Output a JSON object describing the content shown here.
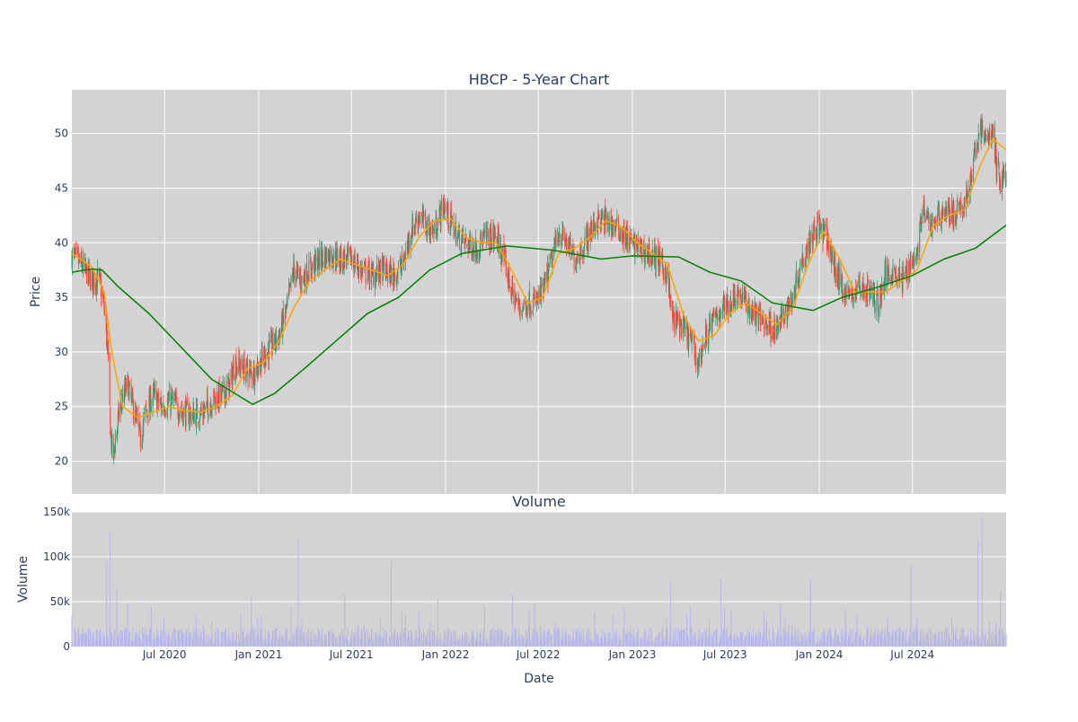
{
  "chart_data": [
    {
      "type": "candlestick",
      "title": "HBCP - 5-Year Chart",
      "ylabel": "Price",
      "xlim": [
        "2020-01-02",
        "2024-12-31"
      ],
      "ylim": [
        17,
        54
      ],
      "y_ticks": [
        20,
        25,
        30,
        35,
        40,
        45,
        50
      ],
      "x_ticks": [
        "2020-07-01",
        "2021-01-01",
        "2021-07-01",
        "2022-01-01",
        "2022-07-01",
        "2023-01-01",
        "2023-07-01",
        "2024-01-01",
        "2024-07-01"
      ],
      "grid": true,
      "up_color": "#3d9970",
      "down_color": "#ff4136",
      "price_path": [
        [
          "2020-01-02",
          38.8
        ],
        [
          "2020-01-20",
          38.0
        ],
        [
          "2020-02-10",
          36.5
        ],
        [
          "2020-02-24",
          36.8
        ],
        [
          "2020-03-05",
          34.0
        ],
        [
          "2020-03-12",
          30.0
        ],
        [
          "2020-03-18",
          22.0
        ],
        [
          "2020-03-23",
          20.5
        ],
        [
          "2020-04-05",
          25.0
        ],
        [
          "2020-04-20",
          27.0
        ],
        [
          "2020-05-05",
          24.0
        ],
        [
          "2020-05-15",
          22.0
        ],
        [
          "2020-05-25",
          24.5
        ],
        [
          "2020-06-10",
          26.0
        ],
        [
          "2020-06-25",
          25.0
        ],
        [
          "2020-07-15",
          25.5
        ],
        [
          "2020-08-05",
          24.5
        ],
        [
          "2020-08-25",
          24.2
        ],
        [
          "2020-09-15",
          24.5
        ],
        [
          "2020-10-01",
          25.5
        ],
        [
          "2020-10-20",
          26.0
        ],
        [
          "2020-11-06",
          27.0
        ],
        [
          "2020-11-15",
          29.0
        ],
        [
          "2020-12-01",
          28.5
        ],
        [
          "2020-12-20",
          28.0
        ],
        [
          "2021-01-10",
          29.5
        ],
        [
          "2021-01-25",
          30.5
        ],
        [
          "2021-02-10",
          31.5
        ],
        [
          "2021-02-25",
          34.0
        ],
        [
          "2021-03-10",
          37.5
        ],
        [
          "2021-03-25",
          36.5
        ],
        [
          "2021-04-10",
          37.5
        ],
        [
          "2021-05-01",
          38.5
        ],
        [
          "2021-05-20",
          39.0
        ],
        [
          "2021-06-10",
          38.5
        ],
        [
          "2021-07-01",
          38.5
        ],
        [
          "2021-07-20",
          37.5
        ],
        [
          "2021-08-10",
          37.0
        ],
        [
          "2021-09-01",
          37.5
        ],
        [
          "2021-09-20",
          37.0
        ],
        [
          "2021-10-10",
          38.0
        ],
        [
          "2021-10-25",
          41.0
        ],
        [
          "2021-11-10",
          42.5
        ],
        [
          "2021-11-25",
          41.5
        ],
        [
          "2021-12-10",
          41.0
        ],
        [
          "2021-12-28",
          43.5
        ],
        [
          "2022-01-10",
          42.0
        ],
        [
          "2022-01-25",
          40.5
        ],
        [
          "2022-02-10",
          40.0
        ],
        [
          "2022-03-01",
          39.5
        ],
        [
          "2022-03-20",
          40.5
        ],
        [
          "2022-04-10",
          40.5
        ],
        [
          "2022-04-25",
          38.5
        ],
        [
          "2022-05-10",
          35.5
        ],
        [
          "2022-05-25",
          34.0
        ],
        [
          "2022-06-10",
          34.5
        ],
        [
          "2022-06-25",
          34.5
        ],
        [
          "2022-07-10",
          35.5
        ],
        [
          "2022-07-25",
          38.0
        ],
        [
          "2022-08-10",
          41.0
        ],
        [
          "2022-08-25",
          40.0
        ],
        [
          "2022-09-10",
          38.5
        ],
        [
          "2022-09-25",
          39.5
        ],
        [
          "2022-10-10",
          41.0
        ],
        [
          "2022-10-25",
          42.0
        ],
        [
          "2022-11-10",
          42.0
        ],
        [
          "2022-11-25",
          41.5
        ],
        [
          "2022-12-10",
          41.0
        ],
        [
          "2022-12-28",
          40.0
        ],
        [
          "2023-01-15",
          39.5
        ],
        [
          "2023-02-01",
          39.0
        ],
        [
          "2023-02-20",
          38.5
        ],
        [
          "2023-03-10",
          37.0
        ],
        [
          "2023-03-20",
          33.0
        ],
        [
          "2023-04-05",
          32.5
        ],
        [
          "2023-04-25",
          31.0
        ],
        [
          "2023-05-10",
          29.0
        ],
        [
          "2023-05-25",
          31.5
        ],
        [
          "2023-06-10",
          33.0
        ],
        [
          "2023-06-25",
          34.0
        ],
        [
          "2023-07-10",
          34.5
        ],
        [
          "2023-07-25",
          35.5
        ],
        [
          "2023-08-10",
          34.5
        ],
        [
          "2023-08-25",
          33.5
        ],
        [
          "2023-09-10",
          33.0
        ],
        [
          "2023-09-25",
          32.5
        ],
        [
          "2023-10-10",
          32.0
        ],
        [
          "2023-10-25",
          33.5
        ],
        [
          "2023-11-10",
          35.0
        ],
        [
          "2023-11-25",
          38.0
        ],
        [
          "2023-12-10",
          40.0
        ],
        [
          "2023-12-28",
          41.5
        ],
        [
          "2024-01-15",
          40.5
        ],
        [
          "2024-02-01",
          37.5
        ],
        [
          "2024-02-15",
          36.0
        ],
        [
          "2024-03-01",
          35.0
        ],
        [
          "2024-03-20",
          36.0
        ],
        [
          "2024-04-10",
          35.5
        ],
        [
          "2024-04-25",
          34.5
        ],
        [
          "2024-05-10",
          37.0
        ],
        [
          "2024-05-25",
          37.5
        ],
        [
          "2024-06-10",
          36.5
        ],
        [
          "2024-06-25",
          38.0
        ],
        [
          "2024-07-10",
          39.0
        ],
        [
          "2024-07-20",
          43.0
        ],
        [
          "2024-08-05",
          41.5
        ],
        [
          "2024-08-20",
          42.5
        ],
        [
          "2024-09-05",
          43.0
        ],
        [
          "2024-09-20",
          42.5
        ],
        [
          "2024-10-05",
          43.0
        ],
        [
          "2024-10-20",
          45.0
        ],
        [
          "2024-10-28",
          47.0
        ],
        [
          "2024-11-08",
          50.5
        ],
        [
          "2024-11-20",
          49.5
        ],
        [
          "2024-12-05",
          50.0
        ],
        [
          "2024-12-12",
          47.0
        ],
        [
          "2024-12-20",
          45.5
        ],
        [
          "2024-12-31",
          46.5
        ]
      ],
      "series": [
        {
          "name": "",
          "color": "#ffa500",
          "window_trading_days": 20,
          "values": [
            [
              "2020-01-02",
              39.0
            ],
            [
              "2020-02-10",
              37.8
            ],
            [
              "2020-03-05",
              35.5
            ],
            [
              "2020-03-20",
              30.0
            ],
            [
              "2020-04-10",
              25.0
            ],
            [
              "2020-05-10",
              24.0
            ],
            [
              "2020-06-10",
              24.5
            ],
            [
              "2020-07-10",
              25.0
            ],
            [
              "2020-08-10",
              24.6
            ],
            [
              "2020-09-10",
              24.5
            ],
            [
              "2020-10-10",
              25.0
            ],
            [
              "2020-11-10",
              26.0
            ],
            [
              "2020-12-10",
              28.5
            ],
            [
              "2021-01-10",
              29.0
            ],
            [
              "2021-02-10",
              31.0
            ],
            [
              "2021-03-10",
              34.0
            ],
            [
              "2021-04-10",
              36.5
            ],
            [
              "2021-05-10",
              37.5
            ],
            [
              "2021-06-10",
              38.5
            ],
            [
              "2021-07-10",
              38.0
            ],
            [
              "2021-08-10",
              37.5
            ],
            [
              "2021-09-10",
              37.0
            ],
            [
              "2021-10-10",
              38.0
            ],
            [
              "2021-11-10",
              40.5
            ],
            [
              "2021-12-10",
              42.0
            ],
            [
              "2022-01-10",
              42.2
            ],
            [
              "2022-02-10",
              40.5
            ],
            [
              "2022-03-10",
              40.0
            ],
            [
              "2022-04-10",
              40.0
            ],
            [
              "2022-05-10",
              37.5
            ],
            [
              "2022-06-10",
              34.5
            ],
            [
              "2022-07-10",
              35.0
            ],
            [
              "2022-08-10",
              39.0
            ],
            [
              "2022-09-10",
              39.5
            ],
            [
              "2022-10-10",
              40.5
            ],
            [
              "2022-11-10",
              42.0
            ],
            [
              "2022-12-10",
              41.5
            ],
            [
              "2023-01-10",
              40.0
            ],
            [
              "2023-02-10",
              39.0
            ],
            [
              "2023-03-10",
              38.0
            ],
            [
              "2023-04-10",
              33.5
            ],
            [
              "2023-05-10",
              31.0
            ],
            [
              "2023-06-10",
              31.5
            ],
            [
              "2023-07-10",
              33.5
            ],
            [
              "2023-08-10",
              34.5
            ],
            [
              "2023-09-10",
              33.5
            ],
            [
              "2023-10-10",
              32.5
            ],
            [
              "2023-11-10",
              34.0
            ],
            [
              "2023-12-10",
              38.0
            ],
            [
              "2024-01-10",
              41.0
            ],
            [
              "2024-02-10",
              38.5
            ],
            [
              "2024-03-10",
              35.5
            ],
            [
              "2024-04-10",
              35.5
            ],
            [
              "2024-05-10",
              35.5
            ],
            [
              "2024-06-10",
              36.5
            ],
            [
              "2024-07-10",
              37.5
            ],
            [
              "2024-08-10",
              41.5
            ],
            [
              "2024-09-10",
              42.5
            ],
            [
              "2024-10-10",
              43.0
            ],
            [
              "2024-11-10",
              47.0
            ],
            [
              "2024-12-05",
              49.5
            ],
            [
              "2024-12-31",
              48.5
            ]
          ]
        },
        {
          "name": "",
          "color": "#008000",
          "window_trading_days": 200,
          "values": [
            [
              "2020-01-02",
              37.3
            ],
            [
              "2020-02-10",
              37.6
            ],
            [
              "2020-03-01",
              37.5
            ],
            [
              "2020-04-01",
              36.0
            ],
            [
              "2020-06-01",
              33.5
            ],
            [
              "2020-08-01",
              30.5
            ],
            [
              "2020-10-01",
              27.5
            ],
            [
              "2020-12-20",
              25.2
            ],
            [
              "2021-02-01",
              26.2
            ],
            [
              "2021-04-01",
              28.5
            ],
            [
              "2021-06-01",
              31.0
            ],
            [
              "2021-08-01",
              33.5
            ],
            [
              "2021-10-01",
              35.0
            ],
            [
              "2021-12-01",
              37.5
            ],
            [
              "2022-02-01",
              39.0
            ],
            [
              "2022-05-01",
              39.7
            ],
            [
              "2022-08-01",
              39.3
            ],
            [
              "2022-11-01",
              38.5
            ],
            [
              "2023-01-01",
              38.8
            ],
            [
              "2023-04-01",
              38.7
            ],
            [
              "2023-06-01",
              37.3
            ],
            [
              "2023-08-01",
              36.5
            ],
            [
              "2023-10-01",
              34.5
            ],
            [
              "2023-12-20",
              33.8
            ],
            [
              "2024-02-15",
              35.0
            ],
            [
              "2024-04-15",
              35.8
            ],
            [
              "2024-07-01",
              37.0
            ],
            [
              "2024-09-01",
              38.5
            ],
            [
              "2024-11-01",
              39.5
            ],
            [
              "2024-12-31",
              41.6
            ]
          ]
        }
      ]
    },
    {
      "type": "bar",
      "title": "Volume",
      "xlabel": "Date",
      "ylabel": "Volume",
      "ylim": [
        0,
        150000
      ],
      "y_ticks": [
        0,
        50000,
        100000,
        150000
      ],
      "y_tick_labels": [
        "0",
        "50k",
        "100k",
        "150k"
      ],
      "x_tick_labels": [
        "Jul 2020",
        "Jan 2021",
        "Jul 2021",
        "Jan 2022",
        "Jul 2022",
        "Jan 2023",
        "Jul 2023",
        "Jan 2024",
        "Jul 2024"
      ],
      "x_ticks": [
        "2020-07-01",
        "2021-01-01",
        "2021-07-01",
        "2022-01-01",
        "2022-07-01",
        "2023-01-01",
        "2023-07-01",
        "2024-01-01",
        "2024-07-01"
      ],
      "xlim": [
        "2020-01-02",
        "2024-12-31"
      ],
      "grid": true,
      "color": "#b7b5e8",
      "typical_volume": 12000,
      "spikes": [
        [
          "2020-03-10",
          95000
        ],
        [
          "2020-03-17",
          128000
        ],
        [
          "2020-03-30",
          65000
        ],
        [
          "2020-04-20",
          48000
        ],
        [
          "2020-05-10",
          78000
        ],
        [
          "2020-06-05",
          45000
        ],
        [
          "2020-09-20",
          52000
        ],
        [
          "2020-12-18",
          55000
        ],
        [
          "2021-03-19",
          120000
        ],
        [
          "2021-03-05",
          45000
        ],
        [
          "2021-06-18",
          58000
        ],
        [
          "2021-09-17",
          95000
        ],
        [
          "2021-12-17",
          52000
        ],
        [
          "2022-03-18",
          45000
        ],
        [
          "2022-05-12",
          58000
        ],
        [
          "2022-06-24",
          48000
        ],
        [
          "2022-12-16",
          42000
        ],
        [
          "2023-03-17",
          72000
        ],
        [
          "2023-06-23",
          75000
        ],
        [
          "2023-09-15",
          40000
        ],
        [
          "2023-12-15",
          75000
        ],
        [
          "2024-03-15",
          35000
        ],
        [
          "2024-06-28",
          90000
        ],
        [
          "2024-07-20",
          50000
        ],
        [
          "2024-11-06",
          118000
        ],
        [
          "2024-11-14",
          145000
        ],
        [
          "2024-12-20",
          62000
        ]
      ]
    }
  ]
}
